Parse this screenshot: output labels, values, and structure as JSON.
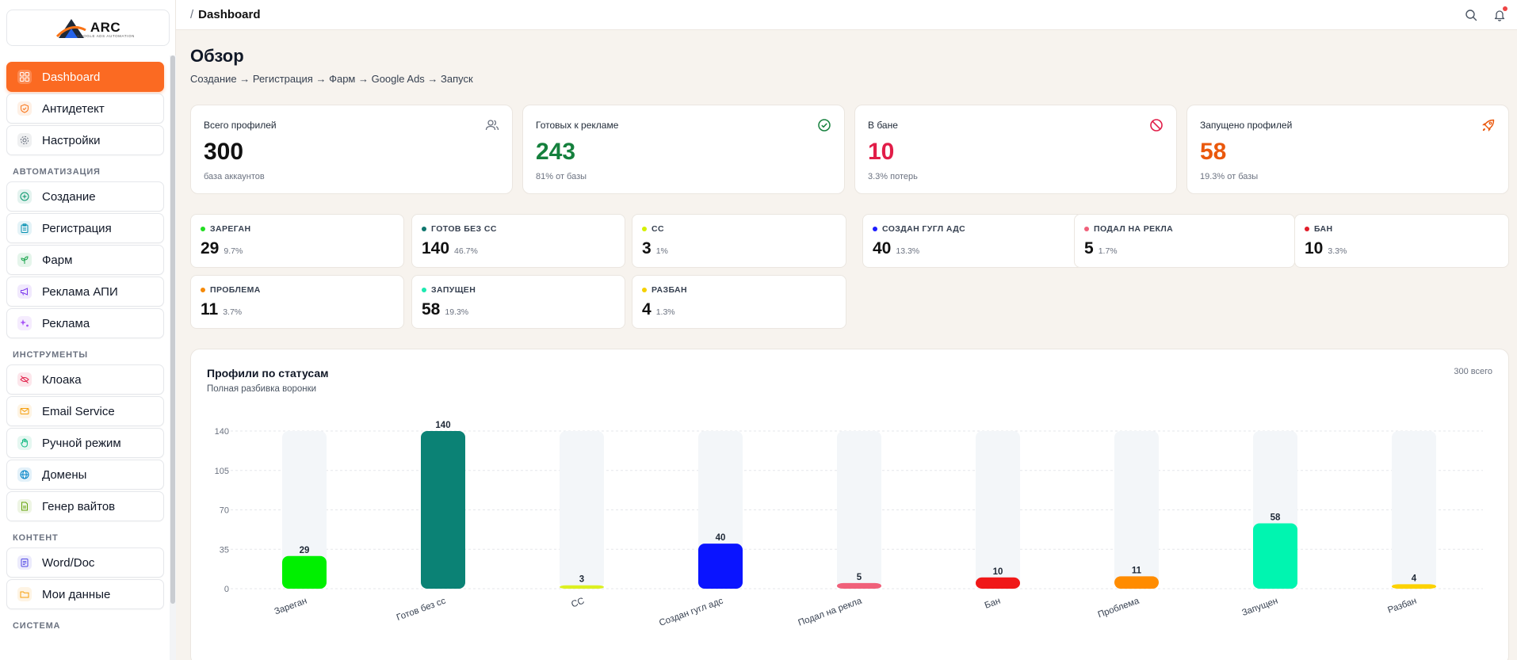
{
  "brand": {
    "name": "ARC",
    "tagline": "GOOGLE ADS AUTOMATION"
  },
  "sidebar": {
    "top_items": [
      {
        "label": "Dashboard",
        "icon": "grid-icon",
        "active": true
      },
      {
        "label": "Антидетект",
        "icon": "shield-icon",
        "color": "#f97316"
      },
      {
        "label": "Настройки",
        "icon": "gear-icon",
        "color": "#6b7280"
      }
    ],
    "sections": [
      {
        "title": "АВТОМАТИЗАЦИЯ",
        "items": [
          {
            "label": "Создание",
            "icon": "plus-circle-icon",
            "color": "#059669"
          },
          {
            "label": "Регистрация",
            "icon": "clipboard-icon",
            "color": "#0891b2"
          },
          {
            "label": "Фарм",
            "icon": "sprout-icon",
            "color": "#16a34a"
          },
          {
            "label": "Реклама АПИ",
            "icon": "megaphone-icon",
            "color": "#7c3aed"
          },
          {
            "label": "Реклама",
            "icon": "sparkle-icon",
            "color": "#a855f7"
          }
        ]
      },
      {
        "title": "ИНСТРУМЕНТЫ",
        "items": [
          {
            "label": "Клоака",
            "icon": "eye-off-icon",
            "color": "#e11d48"
          },
          {
            "label": "Email Service",
            "icon": "mail-icon",
            "color": "#f59e0b"
          },
          {
            "label": "Ручной режим",
            "icon": "hand-icon",
            "color": "#10b981"
          },
          {
            "label": "Домены",
            "icon": "globe-icon",
            "color": "#0284c7"
          },
          {
            "label": "Генер вайтов",
            "icon": "file-icon",
            "color": "#65a30d"
          }
        ]
      },
      {
        "title": "КОНТЕНТ",
        "items": [
          {
            "label": "Word/Doc",
            "icon": "doc-icon",
            "color": "#4f46e5"
          },
          {
            "label": "Мои данные",
            "icon": "folder-icon",
            "color": "#f59e0b"
          }
        ]
      },
      {
        "title": "СИСТЕМА",
        "items": []
      }
    ]
  },
  "topbar": {
    "breadcrumb_sep": "/",
    "breadcrumb": "Dashboard"
  },
  "page": {
    "title": "Обзор",
    "subtitle": "Создание → Регистрация → Фарм → Google Ads → Запуск"
  },
  "kpis": [
    {
      "label": "Всего профилей",
      "value": "300",
      "sub": "база аккаунтов",
      "color": "#111111",
      "icon": "users-icon"
    },
    {
      "label": "Готовых к рекламе",
      "value": "243",
      "sub": "81% от базы",
      "color": "#15803d",
      "icon": "check-circle-icon"
    },
    {
      "label": "В бане",
      "value": "10",
      "sub": "3.3% потерь",
      "color": "#e11d48",
      "icon": "ban-icon"
    },
    {
      "label": "Запущено профилей",
      "value": "58",
      "sub": "19.3% от базы",
      "color": "#ea580c",
      "icon": "rocket-icon"
    }
  ],
  "statuses": [
    {
      "label": "ЗАРЕГАН",
      "value": "29",
      "pct": "9.7%",
      "color": "#22dd22"
    },
    {
      "label": "ГОТОВ БЕЗ СС",
      "value": "140",
      "pct": "46.7%",
      "color": "#0f766e"
    },
    {
      "label": "СС",
      "value": "3",
      "pct": "1%",
      "color": "#d4f000"
    },
    {
      "label": "СОЗДАН ГУГЛ АДС",
      "value": "40",
      "pct": "13.3%",
      "color": "#1d1dff"
    },
    {
      "label": "ПОДАЛ НА РЕКЛА",
      "value": "5",
      "pct": "1.7%",
      "color": "#f0607a"
    },
    {
      "label": "БАН",
      "value": "10",
      "pct": "3.3%",
      "color": "#e11d2a"
    },
    {
      "label": "ПРОБЛЕМА",
      "value": "11",
      "pct": "3.7%",
      "color": "#f58a0a"
    },
    {
      "label": "ЗАПУЩЕН",
      "value": "58",
      "pct": "19.3%",
      "color": "#1de9b0"
    },
    {
      "label": "РАЗБАН",
      "value": "4",
      "pct": "1.3%",
      "color": "#f5d000"
    }
  ],
  "chart_card": {
    "title": "Профили по статусам",
    "subtitle": "Полная разбивка воронки",
    "total": "300 всего"
  },
  "chart_data": {
    "type": "bar",
    "categories": [
      "Зареган",
      "Готов без сс",
      "СС",
      "Создан гугл адс",
      "Подал на рекла",
      "Бан",
      "Проблема",
      "Запущен",
      "Разбан"
    ],
    "values": [
      29,
      140,
      3,
      40,
      5,
      10,
      11,
      58,
      4
    ],
    "colors": [
      "#00f000",
      "#0b8275",
      "#dcf020",
      "#0a14ff",
      "#f0607a",
      "#f01818",
      "#ff8c00",
      "#00f5b0",
      "#fcd200"
    ],
    "ylim": [
      0,
      140
    ],
    "yticks": [
      0,
      35,
      70,
      105,
      140
    ],
    "grid": true,
    "xlabel": "",
    "ylabel": ""
  }
}
